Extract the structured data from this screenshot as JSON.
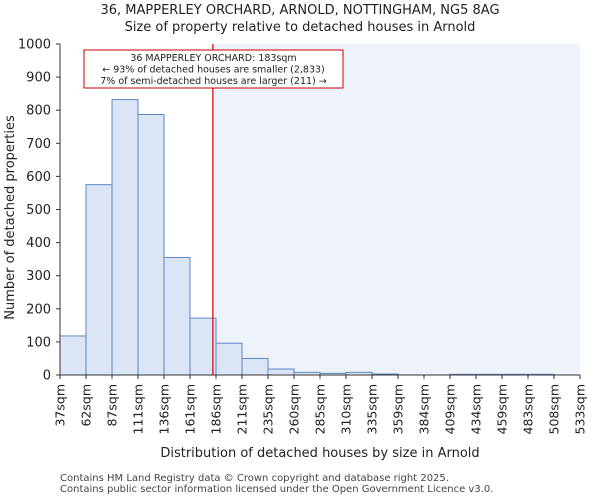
{
  "header": {
    "title": "36, MAPPERLEY ORCHARD, ARNOLD, NOTTINGHAM, NG5 8AG",
    "subtitle": "Size of property relative to detached houses in Arnold"
  },
  "footer": {
    "line1": "Contains HM Land Registry data © Crown copyright and database right 2025.",
    "line2": "Contains public sector information licensed under the Open Government Licence v3.0."
  },
  "colors": {
    "bar_fill": "#dbe5f6",
    "bar_stroke": "#5b87c5",
    "highlight_region": "#eef2fb",
    "marker_line": "#cc0000",
    "annotation_border": "#cc0000"
  },
  "chart_data": {
    "type": "bar",
    "xlabel": "Distribution of detached houses by size in Arnold",
    "ylabel": "Number of detached properties",
    "ylim": [
      0,
      1000
    ],
    "yticks": [
      0,
      100,
      200,
      300,
      400,
      500,
      600,
      700,
      800,
      900,
      1000
    ],
    "categories": [
      "37sqm",
      "62sqm",
      "87sqm",
      "111sqm",
      "136sqm",
      "161sqm",
      "186sqm",
      "211sqm",
      "235sqm",
      "260sqm",
      "285sqm",
      "310sqm",
      "335sqm",
      "359sqm",
      "384sqm",
      "409sqm",
      "434sqm",
      "459sqm",
      "483sqm",
      "508sqm",
      "533sqm"
    ],
    "values": [
      118,
      575,
      832,
      787,
      355,
      172,
      96,
      50,
      18,
      8,
      5,
      8,
      3,
      0,
      0,
      2,
      2,
      2,
      2,
      0,
      0
    ],
    "marker": {
      "value_sqm": 183,
      "bin_position": 5.88,
      "label_line1": "36 MAPPERLEY ORCHARD: 183sqm",
      "label_line2": "← 93% of detached houses are smaller (2,833)",
      "label_line3": "7% of semi-detached houses are larger (211) →"
    }
  }
}
